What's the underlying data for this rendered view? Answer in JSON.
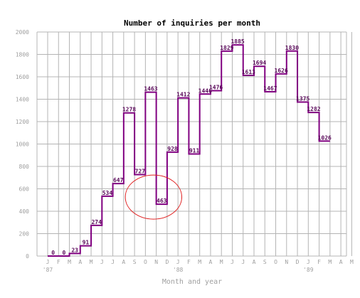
{
  "chart_data": {
    "type": "line",
    "title": "Number of inquiries per month",
    "xlabel": "Month and year",
    "ylabel": "",
    "ylim": [
      0,
      2000
    ],
    "y_ticks": [
      0,
      200,
      400,
      600,
      800,
      1000,
      1200,
      1400,
      1600,
      1800,
      2000
    ],
    "x_tick_labels": [
      "J",
      "F",
      "M",
      "A",
      "M",
      "J",
      "J",
      "A",
      "S",
      "O",
      "N",
      "D",
      "J",
      "F",
      "M",
      "A",
      "M",
      "J",
      "J",
      "A",
      "S",
      "O",
      "N",
      "D",
      "J",
      "F",
      "M",
      "A",
      "M"
    ],
    "year_labels": [
      {
        "index": 0,
        "label": "'87"
      },
      {
        "index": 12,
        "label": "'88"
      },
      {
        "index": 24,
        "label": "'89"
      }
    ],
    "grid": true,
    "line_style": "step",
    "colors": {
      "series": "#800080",
      "label": "#5a0a5a",
      "annotation": "#e02020",
      "grid": "#b4b4b4",
      "axis_text": "#a0a0a0"
    },
    "annotation": {
      "shape": "ellipse",
      "around_index": 10,
      "around_value": 463
    },
    "series": [
      {
        "name": "",
        "values": [
          0,
          0,
          23,
          91,
          274,
          534,
          647,
          1278,
          727,
          1463,
          463,
          928,
          1412,
          911,
          1446,
          1476,
          1829,
          1885,
          1613,
          1694,
          1467,
          1626,
          1830,
          1375,
          1282,
          1026
        ]
      }
    ]
  }
}
